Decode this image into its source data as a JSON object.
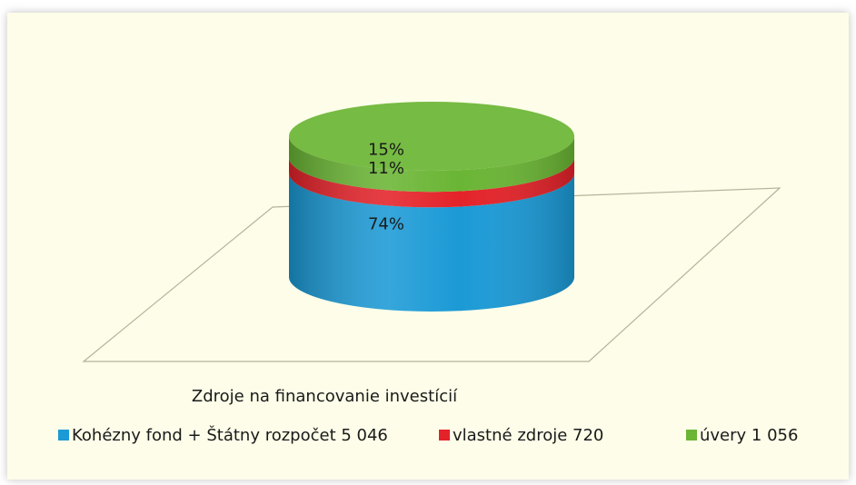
{
  "chart_data": {
    "type": "stacked-cylinder",
    "categories": [
      "Zdroje na financovanie investícií"
    ],
    "series": [
      {
        "name": "Kohézny fond + Štátny rozpočet 5 046",
        "color": "#1b9ad6",
        "values": [
          74
        ],
        "value_labels": [
          "74%"
        ]
      },
      {
        "name": "vlastné zdroje 720",
        "color": "#e42229",
        "values": [
          11
        ],
        "value_labels": [
          "11%"
        ]
      },
      {
        "name": "úvery 1 056",
        "color": "#6ab534",
        "values": [
          15
        ],
        "value_labels": [
          "15%"
        ]
      }
    ],
    "legend": "bottom"
  }
}
